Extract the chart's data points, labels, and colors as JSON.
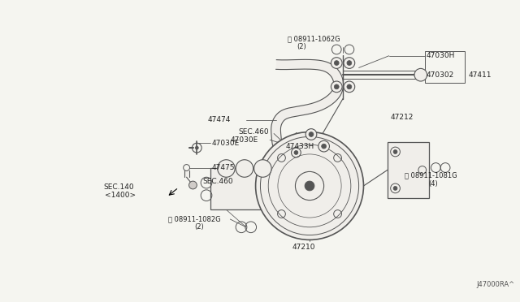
{
  "bg_color": "#f5f5f0",
  "line_color": "#555555",
  "text_color": "#222222",
  "diagram_code": "J47000RA^",
  "figsize": [
    6.4,
    3.72
  ],
  "dpi": 100,
  "labels": {
    "N08911_1062G": "Ⓝ 08911-1062G",
    "N_2_top": "(2)",
    "47030H": "47030H",
    "47030Z": "470302",
    "47411": "47411",
    "47433H": "47433H",
    "47474": "47474",
    "47030E_left": "47030E",
    "47475": "47475",
    "SEC140": "SEC.140",
    "SEC140b": "<1400>",
    "47030E_bot": "47030E",
    "SEC460_top": "SEC.460",
    "SEC460_bot": "SEC.460",
    "47212": "47212",
    "47210": "47210",
    "N08911_1081G": "Ⓝ 08911-1081G",
    "N_4": "(4)",
    "N08911_1082G": "Ⓝ 08911-1082G",
    "N_2_bot": "(2)"
  }
}
